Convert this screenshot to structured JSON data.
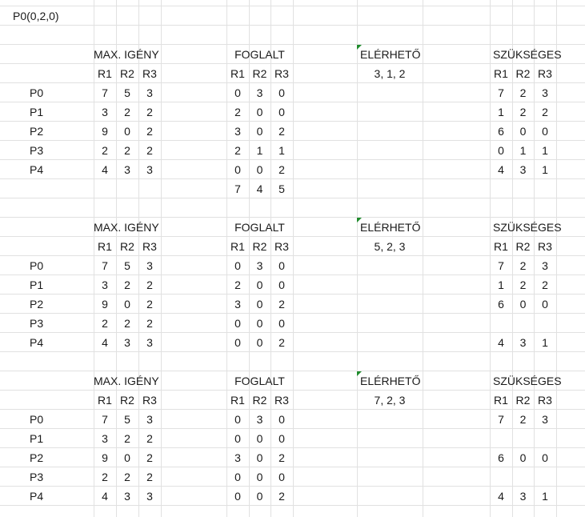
{
  "note": "P0(0,2,0)",
  "headers": {
    "max": "MAX. IGÉNY",
    "foglalt": "FOGLALT",
    "elerheto": "ELÉRHETŐ",
    "szukseges": "SZÜKSÉGES",
    "cols": [
      "R1",
      "R2",
      "R3"
    ]
  },
  "processes": [
    "P0",
    "P1",
    "P2",
    "P3",
    "P4"
  ],
  "indicator_color": "#1f8b2c",
  "blocks": [
    {
      "elerheto": "3, 1, 2",
      "max": [
        [
          "7",
          "5",
          "3"
        ],
        [
          "3",
          "2",
          "2"
        ],
        [
          "9",
          "0",
          "2"
        ],
        [
          "2",
          "2",
          "2"
        ],
        [
          "4",
          "3",
          "3"
        ]
      ],
      "foglalt": [
        [
          "0",
          "3",
          "0"
        ],
        [
          "2",
          "0",
          "0"
        ],
        [
          "3",
          "0",
          "2"
        ],
        [
          "2",
          "1",
          "1"
        ],
        [
          "0",
          "0",
          "2"
        ]
      ],
      "foglalt_total": [
        "7",
        "4",
        "5"
      ],
      "szukseges": [
        [
          "7",
          "2",
          "3"
        ],
        [
          "1",
          "2",
          "2"
        ],
        [
          "6",
          "0",
          "0"
        ],
        [
          "0",
          "1",
          "1"
        ],
        [
          "4",
          "3",
          "1"
        ]
      ]
    },
    {
      "elerheto": "5, 2, 3",
      "max": [
        [
          "7",
          "5",
          "3"
        ],
        [
          "3",
          "2",
          "2"
        ],
        [
          "9",
          "0",
          "2"
        ],
        [
          "2",
          "2",
          "2"
        ],
        [
          "4",
          "3",
          "3"
        ]
      ],
      "foglalt": [
        [
          "0",
          "3",
          "0"
        ],
        [
          "2",
          "0",
          "0"
        ],
        [
          "3",
          "0",
          "2"
        ],
        [
          "0",
          "0",
          "0"
        ],
        [
          "0",
          "0",
          "2"
        ]
      ],
      "szukseges": [
        [
          "7",
          "2",
          "3"
        ],
        [
          "1",
          "2",
          "2"
        ],
        [
          "6",
          "0",
          "0"
        ],
        [
          "",
          "",
          ""
        ],
        [
          "4",
          "3",
          "1"
        ]
      ]
    },
    {
      "elerheto": "7, 2, 3",
      "max": [
        [
          "7",
          "5",
          "3"
        ],
        [
          "3",
          "2",
          "2"
        ],
        [
          "9",
          "0",
          "2"
        ],
        [
          "2",
          "2",
          "2"
        ],
        [
          "4",
          "3",
          "3"
        ]
      ],
      "foglalt": [
        [
          "0",
          "3",
          "0"
        ],
        [
          "0",
          "0",
          "0"
        ],
        [
          "3",
          "0",
          "2"
        ],
        [
          "0",
          "0",
          "0"
        ],
        [
          "0",
          "0",
          "2"
        ]
      ],
      "szukseges": [
        [
          "7",
          "2",
          "3"
        ],
        [
          "",
          "",
          ""
        ],
        [
          "6",
          "0",
          "0"
        ],
        [
          "",
          "",
          ""
        ],
        [
          "4",
          "3",
          "1"
        ]
      ]
    }
  ]
}
